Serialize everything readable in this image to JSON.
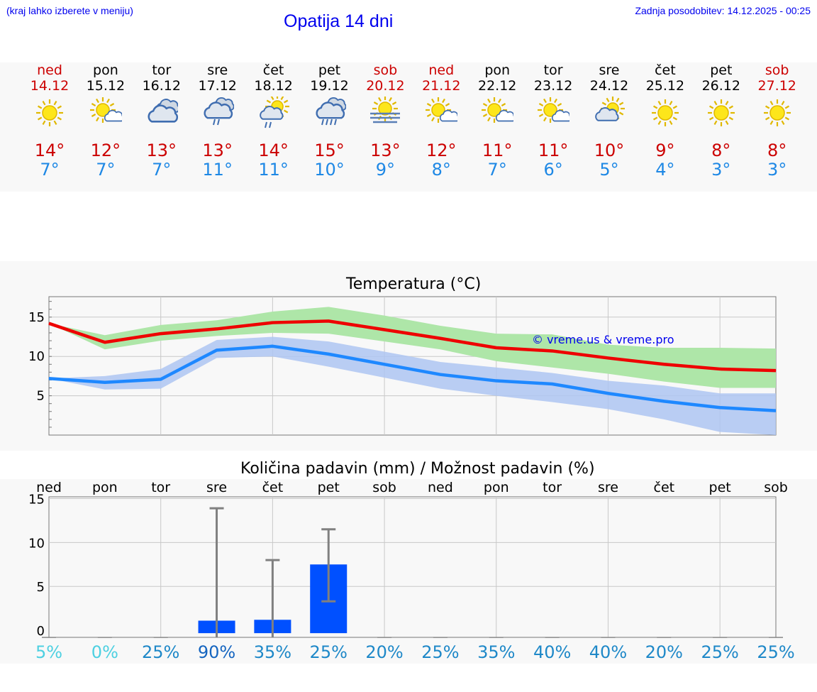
{
  "header": {
    "left_link": "(kraj lahko izberete v meniju)",
    "title": "Opatija 14 dni",
    "updated": "Zadnja posodobitev: 14.12.2025 - 00:25"
  },
  "days": [
    {
      "name": "ned",
      "date": "14.12",
      "icon": "sun-icon",
      "max": "14°",
      "min": "7°",
      "weekend": true
    },
    {
      "name": "pon",
      "date": "15.12",
      "icon": "sun-cloud-icon",
      "max": "12°",
      "min": "7°",
      "weekend": false
    },
    {
      "name": "tor",
      "date": "16.12",
      "icon": "cloudy-icon",
      "max": "13°",
      "min": "7°",
      "weekend": false
    },
    {
      "name": "sre",
      "date": "17.12",
      "icon": "cloud-rain-icon",
      "max": "13°",
      "min": "11°",
      "weekend": false
    },
    {
      "name": "čet",
      "date": "18.12",
      "icon": "sun-cloud-rain-icon",
      "max": "14°",
      "min": "11°",
      "weekend": false
    },
    {
      "name": "pet",
      "date": "19.12",
      "icon": "cloud-heavy-rain-icon",
      "max": "15°",
      "min": "10°",
      "weekend": false
    },
    {
      "name": "sob",
      "date": "20.12",
      "icon": "sun-fog-icon",
      "max": "13°",
      "min": "9°",
      "weekend": true
    },
    {
      "name": "ned",
      "date": "21.12",
      "icon": "sun-cloud-icon",
      "max": "12°",
      "min": "8°",
      "weekend": true
    },
    {
      "name": "pon",
      "date": "22.12",
      "icon": "sun-cloud-icon",
      "max": "11°",
      "min": "7°",
      "weekend": false
    },
    {
      "name": "tor",
      "date": "23.12",
      "icon": "sun-cloud-icon",
      "max": "11°",
      "min": "6°",
      "weekend": false
    },
    {
      "name": "sre",
      "date": "24.12",
      "icon": "cloud-sun-icon",
      "max": "10°",
      "min": "5°",
      "weekend": false
    },
    {
      "name": "čet",
      "date": "25.12",
      "icon": "sun-icon",
      "max": "9°",
      "min": "4°",
      "weekend": false
    },
    {
      "name": "pet",
      "date": "26.12",
      "icon": "sun-icon",
      "max": "8°",
      "min": "3°",
      "weekend": false
    },
    {
      "name": "sob",
      "date": "27.12",
      "icon": "sun-icon",
      "max": "8°",
      "min": "3°",
      "weekend": true
    }
  ],
  "colors": {
    "weekend": "#cc0000",
    "max": "#cc0000",
    "min": "#1e88e5",
    "max_line": "#ee0000",
    "max_band": "#aee6a8",
    "min_line": "#1e88ff",
    "min_band": "#aec5f2",
    "bar": "#0050ff",
    "error": "#808080",
    "grid": "#c8c8c8"
  },
  "chart_data": [
    {
      "type": "line",
      "title": "Temperatura (°C)",
      "watermark": "© vreme.us & vreme.pro",
      "x": [
        0,
        1,
        2,
        3,
        4,
        5,
        6,
        7,
        8,
        9,
        10,
        11,
        12,
        13
      ],
      "ylim": [
        0,
        17.6
      ],
      "yticks": [
        "5",
        "10",
        "15"
      ],
      "ytick_values": [
        5,
        10,
        15
      ],
      "series": [
        {
          "name": "max",
          "values": [
            14.2,
            11.8,
            12.9,
            13.5,
            14.3,
            14.5,
            13.4,
            12.3,
            11.1,
            10.7,
            9.8,
            9.0,
            8.4,
            8.2
          ],
          "upper": [
            14.2,
            12.7,
            14.0,
            14.6,
            15.7,
            16.3,
            15.2,
            13.9,
            12.9,
            12.8,
            11.5,
            11.1,
            11.1,
            11.0
          ],
          "lower": [
            14.2,
            10.9,
            12.0,
            12.6,
            13.0,
            12.9,
            11.9,
            10.9,
            9.4,
            8.6,
            7.8,
            6.8,
            6.0,
            6.0
          ]
        },
        {
          "name": "min",
          "values": [
            7.2,
            6.7,
            7.1,
            10.8,
            11.3,
            10.3,
            9.0,
            7.7,
            6.9,
            6.5,
            5.3,
            4.3,
            3.5,
            3.1
          ],
          "upper": [
            7.2,
            7.5,
            8.4,
            12.1,
            12.5,
            11.9,
            10.6,
            9.3,
            8.6,
            7.9,
            6.9,
            6.3,
            5.3,
            5.3
          ],
          "lower": [
            7.2,
            5.8,
            5.9,
            9.8,
            10.0,
            8.7,
            7.3,
            5.9,
            5.0,
            4.2,
            3.3,
            2.0,
            0.4,
            0.0
          ]
        }
      ]
    },
    {
      "type": "bar",
      "title": "Količina padavin (mm) / Možnost padavin (%)",
      "categories": [
        "ned",
        "pon",
        "tor",
        "sre",
        "čet",
        "pet",
        "sob",
        "ned",
        "pon",
        "tor",
        "sre",
        "čet",
        "pet",
        "sob"
      ],
      "values": [
        0,
        0,
        0,
        1.1,
        1.2,
        7.5,
        0,
        0,
        0,
        0,
        0,
        0,
        0,
        0
      ],
      "err_low": [
        0,
        0,
        0,
        0,
        0,
        3.3,
        0,
        0,
        0,
        0,
        0,
        0,
        0,
        0
      ],
      "err_high": [
        0,
        0,
        0,
        13.9,
        8.0,
        11.5,
        0,
        0,
        0,
        0,
        0,
        0,
        0,
        0
      ],
      "ylim": [
        -0.8,
        15.2
      ],
      "yticks": [
        "0",
        "5",
        "10",
        "15"
      ],
      "ytick_values": [
        0,
        5,
        10,
        15
      ],
      "chance": [
        "5%",
        "0%",
        "25%",
        "90%",
        "35%",
        "25%",
        "20%",
        "25%",
        "35%",
        "40%",
        "40%",
        "20%",
        "25%",
        "25%"
      ],
      "chance_colors": [
        "#4dd0e1",
        "#4dd0e1",
        "#1e88c8",
        "#1565c0",
        "#1e88c8",
        "#1e88c8",
        "#1e88c8",
        "#1e88c8",
        "#1e88c8",
        "#1e88c8",
        "#1e88c8",
        "#1e88c8",
        "#1e88c8",
        "#1e88c8"
      ]
    }
  ]
}
